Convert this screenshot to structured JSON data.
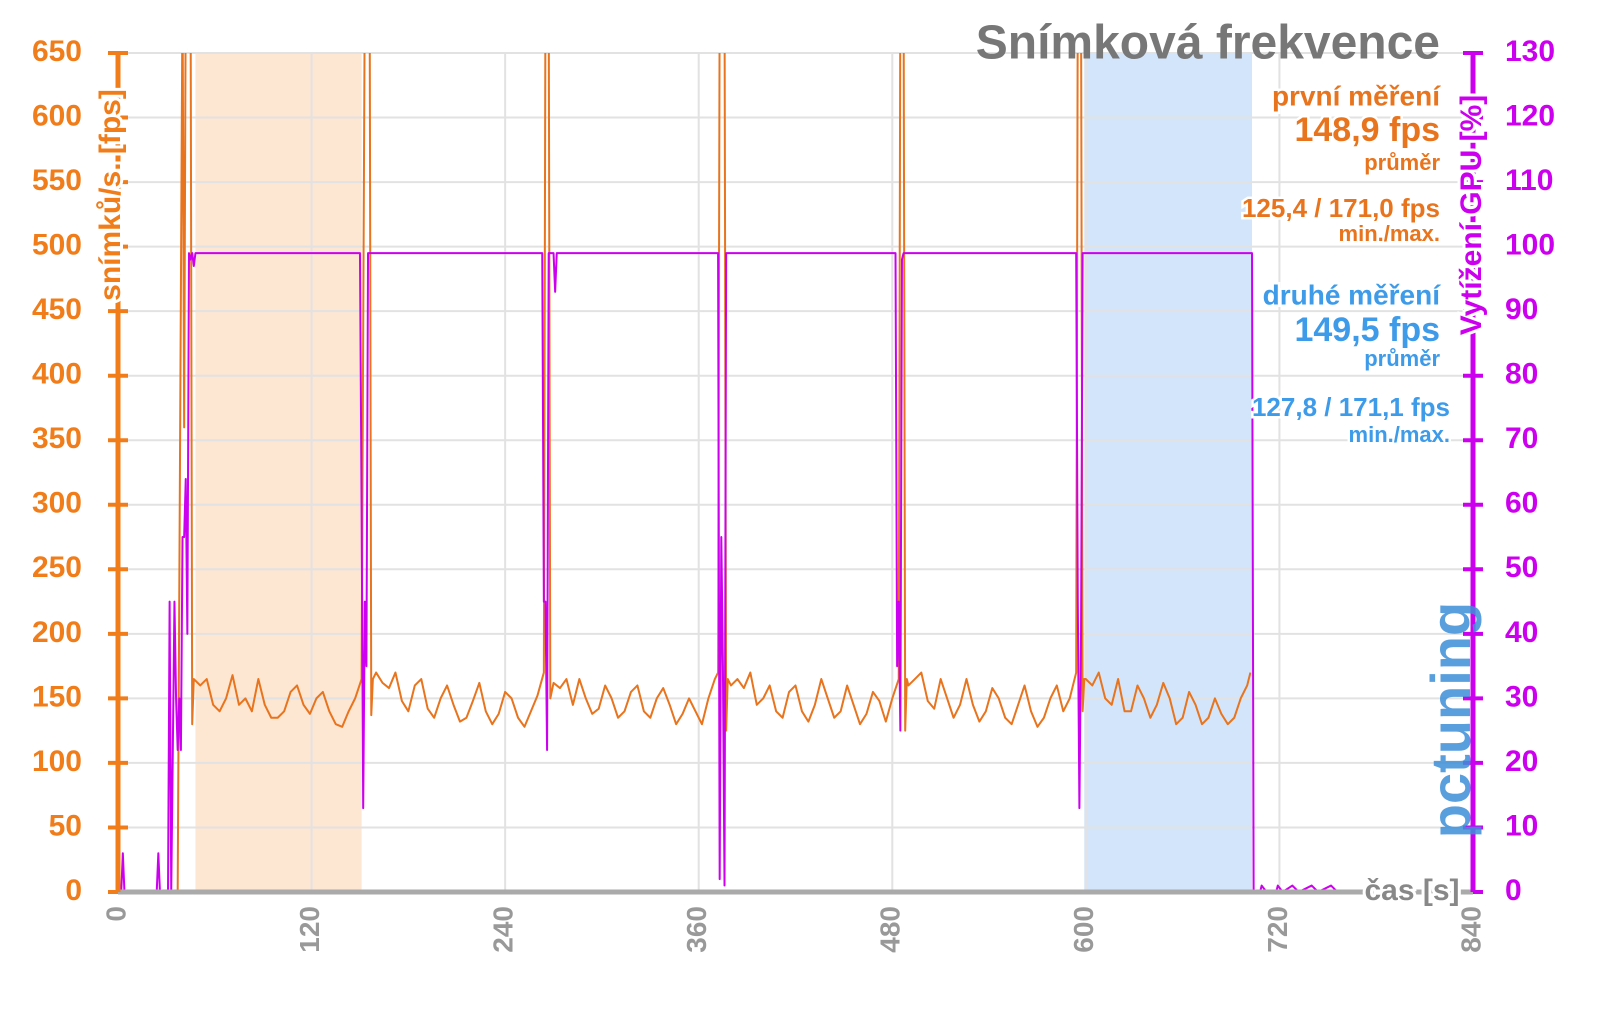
{
  "chart_data": {
    "type": "line",
    "title": "Snímková frekvence",
    "x_label": "čas [s]",
    "y_label": "snímků/s. [fps]",
    "y2_label": "Vytížení GPU [%]",
    "logo": "pctuning",
    "annotations": [
      {
        "text": "první měření",
        "color": "#e8741e"
      },
      {
        "text": "148,9 fps",
        "color": "#e8741e"
      },
      {
        "text": "průměr",
        "color": "#e8741e"
      },
      {
        "text": "125,4 / 171,0 fps",
        "color": "#e8741e"
      },
      {
        "text": "min./max.",
        "color": "#e8741e"
      },
      {
        "text": "druhé měření",
        "color": "#3d9be9"
      },
      {
        "text": "149,5 fps",
        "color": "#3d9be9"
      },
      {
        "text": "průměr",
        "color": "#3d9be9"
      },
      {
        "text": "127,8 / 171,1 fps",
        "color": "#3d9be9"
      },
      {
        "text": "min./max.",
        "color": "#3d9be9"
      }
    ],
    "shaded_ranges": [
      {
        "start": 48,
        "end": 151,
        "color": "#fde6d2"
      },
      {
        "start": 599,
        "end": 703,
        "color": "#d3e5fa"
      }
    ],
    "xlim": [
      0,
      840
    ],
    "xticks": [
      0,
      120,
      240,
      360,
      480,
      600,
      720,
      840
    ],
    "ylim": [
      0,
      650
    ],
    "yticks": [
      0,
      50,
      100,
      150,
      200,
      250,
      300,
      350,
      400,
      450,
      500,
      550,
      600,
      650
    ],
    "y2lim": [
      0,
      130
    ],
    "y2ticks": [
      0,
      10,
      20,
      30,
      40,
      50,
      60,
      70,
      80,
      90,
      100,
      110,
      120,
      130
    ],
    "grid": true,
    "y_color": "#f07d1a",
    "y2_color": "#cc00ee",
    "series": [
      {
        "color": "#e8741e",
        "x": [
          37,
          40,
          41,
          42,
          45,
          46,
          47,
          51,
          55,
          59,
          63,
          67,
          71,
          75,
          79,
          83,
          87,
          91,
          95,
          99,
          103,
          107,
          111,
          115,
          119,
          123,
          127,
          131,
          135,
          139,
          143,
          147,
          151,
          153,
          156,
          157,
          158,
          160,
          164,
          168,
          172,
          176,
          180,
          184,
          188,
          192,
          196,
          200,
          204,
          208,
          212,
          216,
          220,
          224,
          228,
          232,
          236,
          240,
          244,
          248,
          252,
          256,
          260,
          264,
          265,
          267,
          268,
          270,
          274,
          278,
          282,
          286,
          290,
          294,
          298,
          302,
          306,
          310,
          314,
          318,
          322,
          326,
          330,
          334,
          338,
          342,
          346,
          350,
          354,
          358,
          362,
          366,
          370,
          372,
          373,
          376,
          377,
          378,
          380,
          384,
          388,
          392,
          396,
          400,
          404,
          408,
          412,
          416,
          420,
          424,
          428,
          432,
          436,
          440,
          444,
          448,
          452,
          456,
          460,
          464,
          468,
          472,
          476,
          480,
          484,
          485,
          487,
          488,
          489,
          490,
          494,
          498,
          502,
          506,
          510,
          514,
          518,
          522,
          526,
          530,
          534,
          538,
          542,
          546,
          550,
          554,
          558,
          562,
          566,
          570,
          574,
          578,
          582,
          586,
          590,
          594,
          595,
          597,
          598,
          599,
          600,
          604,
          608,
          612,
          616,
          620,
          624,
          628,
          632,
          636,
          640,
          644,
          648,
          652,
          656,
          660,
          664,
          668,
          672,
          676,
          680,
          684,
          688,
          692,
          696,
          700,
          702
        ],
        "values": [
          0,
          700,
          360,
          700,
          700,
          130,
          165,
          160,
          165,
          145,
          140,
          150,
          168,
          145,
          150,
          140,
          165,
          145,
          135,
          135,
          140,
          155,
          160,
          145,
          138,
          150,
          155,
          140,
          130,
          128,
          140,
          150,
          165,
          700,
          700,
          137,
          165,
          170,
          162,
          158,
          170,
          148,
          140,
          160,
          165,
          142,
          135,
          150,
          160,
          145,
          132,
          135,
          148,
          162,
          140,
          130,
          138,
          155,
          150,
          135,
          128,
          140,
          152,
          170,
          700,
          700,
          150,
          162,
          158,
          165,
          145,
          165,
          150,
          138,
          142,
          160,
          150,
          135,
          140,
          155,
          160,
          140,
          135,
          150,
          158,
          145,
          130,
          138,
          150,
          140,
          130,
          150,
          165,
          170,
          700,
          700,
          125,
          165,
          160,
          165,
          158,
          170,
          145,
          150,
          160,
          140,
          135,
          155,
          160,
          140,
          132,
          145,
          165,
          150,
          135,
          140,
          160,
          145,
          130,
          138,
          155,
          148,
          132,
          150,
          165,
          700,
          700,
          125,
          165,
          160,
          165,
          170,
          148,
          142,
          165,
          150,
          135,
          145,
          165,
          145,
          132,
          140,
          158,
          150,
          135,
          130,
          145,
          160,
          140,
          128,
          135,
          150,
          160,
          140,
          150,
          170,
          700,
          700,
          140,
          165,
          165,
          160,
          170,
          150,
          145,
          165,
          140,
          140,
          160,
          150,
          135,
          145,
          162,
          150,
          130,
          135,
          155,
          145,
          130,
          135,
          150,
          138,
          130,
          135,
          150,
          160,
          170
        ]
      },
      {
        "color": "#cc00ee",
        "axis": "y2",
        "x": [
          0,
          2,
          3,
          4,
          24,
          25,
          26,
          31,
          32,
          33,
          35,
          36,
          37,
          38,
          39,
          40,
          41,
          42,
          43,
          44,
          45,
          46,
          47,
          48,
          150,
          151,
          152,
          153,
          154,
          155,
          263,
          264,
          265,
          266,
          267,
          270,
          271,
          272,
          372,
          373,
          374,
          375,
          376,
          377,
          482,
          483,
          484,
          485,
          486,
          487,
          594,
          595,
          596,
          597,
          598,
          703,
          704,
          708,
          709,
          712,
          718,
          719,
          722,
          728,
          732,
          740,
          744,
          752,
          756,
          766
        ],
        "values": [
          0,
          0,
          6,
          0,
          0,
          6,
          0,
          0,
          45,
          0,
          45,
          30,
          22,
          30,
          22,
          55,
          55,
          64,
          40,
          99,
          98,
          99,
          97,
          99,
          99,
          60,
          13,
          45,
          35,
          99,
          99,
          45,
          45,
          22,
          99,
          99,
          93,
          99,
          99,
          2,
          55,
          35,
          1,
          99,
          99,
          35,
          45,
          25,
          98,
          99,
          99,
          45,
          13,
          40,
          99,
          99,
          0,
          0,
          1,
          0,
          0,
          1,
          0,
          1,
          0,
          1,
          0,
          1,
          0,
          0
        ]
      }
    ]
  }
}
